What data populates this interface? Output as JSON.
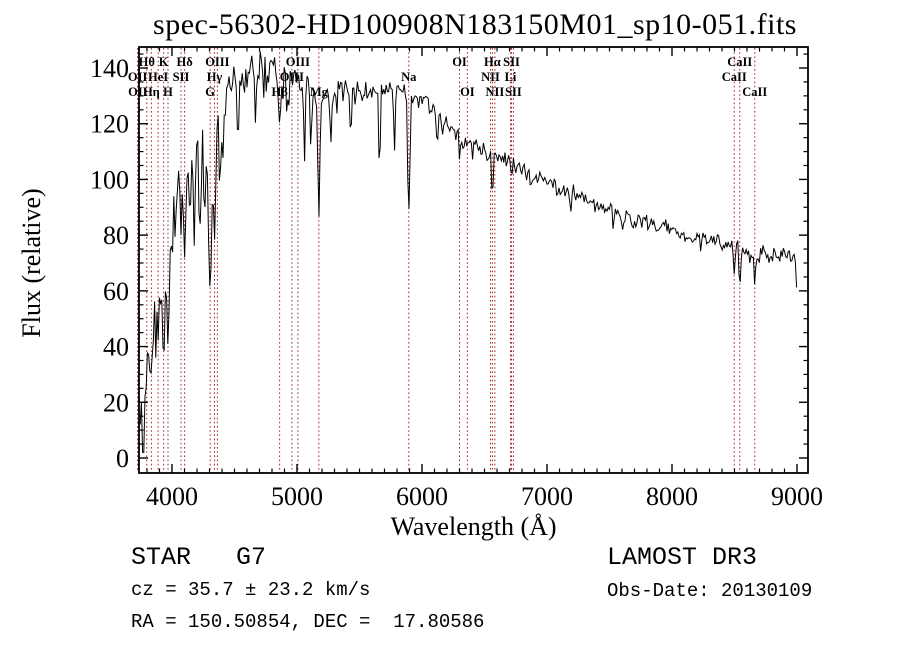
{
  "title": "spec-56302-HD100908N183150M01_sp10-051.fits",
  "annotations": {
    "class_line": "STAR   G7",
    "cz_line": "cz = 35.7 ± 23.2 km/s",
    "radec_line": "RA = 150.50854, DEC =  17.80586",
    "survey_line": "LAMOST DR3",
    "obsdate_line": "Obs-Date: 20130109"
  },
  "colors": {
    "background": "#ffffff",
    "axis": "#000000",
    "spectrum": "#000000",
    "line_marker": "#a02828",
    "text": "#000000"
  },
  "chart_data": {
    "type": "line",
    "title": "spec-56302-HD100908N183150M01_sp10-051.fits",
    "xlabel": "Wavelength (Å)",
    "ylabel": "Flux (relative)",
    "xlim": [
      3736,
      9088
    ],
    "ylim": [
      -5.4,
      147.5
    ],
    "x_ticks": [
      4000,
      5000,
      6000,
      7000,
      8000,
      9000
    ],
    "y_ticks": [
      0,
      20,
      40,
      60,
      80,
      100,
      120,
      140
    ],
    "x_minor_step": 100,
    "y_minor_step": 5,
    "grid": false,
    "legend": "none",
    "line_markers": [
      {
        "label": "OII",
        "wavelength": 3725,
        "row": 2
      },
      {
        "label": "OII",
        "wavelength": 3727,
        "row": 3
      },
      {
        "label": "Hθ",
        "wavelength": 3798,
        "row": 1
      },
      {
        "label": "Hη",
        "wavelength": 3835,
        "row": 3
      },
      {
        "label": "HeI",
        "wavelength": 3889,
        "row": 2
      },
      {
        "label": "K",
        "wavelength": 3933,
        "row": 1
      },
      {
        "label": "H",
        "wavelength": 3968,
        "row": 3
      },
      {
        "label": "SII",
        "wavelength": 4072,
        "row": 2
      },
      {
        "label": "Hδ",
        "wavelength": 4101,
        "row": 1
      },
      {
        "label": "G",
        "wavelength": 4305,
        "row": 3
      },
      {
        "label": "Hγ",
        "wavelength": 4340,
        "row": 2
      },
      {
        "label": "OIII",
        "wavelength": 4363,
        "row": 1
      },
      {
        "label": "Hβ",
        "wavelength": 4861,
        "row": 3
      },
      {
        "label": "OIII",
        "wavelength": 4959,
        "row": 2
      },
      {
        "label": "OIII",
        "wavelength": 5007,
        "row": 1
      },
      {
        "label": "Mg",
        "wavelength": 5175,
        "row": 3
      },
      {
        "label": "Na",
        "wavelength": 5894,
        "row": 2
      },
      {
        "label": "OI",
        "wavelength": 6300,
        "row": 1
      },
      {
        "label": "OI",
        "wavelength": 6363,
        "row": 3
      },
      {
        "label": "NII",
        "wavelength": 6548,
        "row": 2
      },
      {
        "label": "Hα",
        "wavelength": 6563,
        "row": 1
      },
      {
        "label": "NII",
        "wavelength": 6583,
        "row": 3
      },
      {
        "label": "Li",
        "wavelength": 6708,
        "row": 2
      },
      {
        "label": "SII",
        "wavelength": 6716,
        "row": 1
      },
      {
        "label": "SII",
        "wavelength": 6731,
        "row": 3
      },
      {
        "label": "CaII",
        "wavelength": 8498,
        "row": 2
      },
      {
        "label": "CaII",
        "wavelength": 8542,
        "row": 1
      },
      {
        "label": "CaII",
        "wavelength": 8662,
        "row": 3
      }
    ],
    "spectrum": {
      "wavelength_start": 3736,
      "wavelength_end": 9005,
      "step": 9.6,
      "seed": 20130109,
      "continuum_anchors": [
        [
          3736,
          28
        ],
        [
          3750,
          36
        ],
        [
          3770,
          44
        ],
        [
          3790,
          50
        ],
        [
          3810,
          54
        ],
        [
          3830,
          56
        ],
        [
          3850,
          58
        ],
        [
          3870,
          62
        ],
        [
          3900,
          70
        ],
        [
          3940,
          72
        ],
        [
          3960,
          76
        ],
        [
          3980,
          82
        ],
        [
          4000,
          90
        ],
        [
          4030,
          100
        ],
        [
          4060,
          102
        ],
        [
          4090,
          100
        ],
        [
          4120,
          103
        ],
        [
          4150,
          106
        ],
        [
          4180,
          108
        ],
        [
          4210,
          110
        ],
        [
          4240,
          112
        ],
        [
          4270,
          106
        ],
        [
          4300,
          99
        ],
        [
          4330,
          106
        ],
        [
          4360,
          116
        ],
        [
          4400,
          126
        ],
        [
          4450,
          132
        ],
        [
          4500,
          135
        ],
        [
          4550,
          136
        ],
        [
          4600,
          138
        ],
        [
          4650,
          140
        ],
        [
          4700,
          141
        ],
        [
          4760,
          142
        ],
        [
          4820,
          140
        ],
        [
          4861,
          136
        ],
        [
          4900,
          140
        ],
        [
          4960,
          138
        ],
        [
          5020,
          137
        ],
        [
          5080,
          135
        ],
        [
          5140,
          130
        ],
        [
          5200,
          131
        ],
        [
          5260,
          133
        ],
        [
          5320,
          132
        ],
        [
          5400,
          132
        ],
        [
          5500,
          132
        ],
        [
          5600,
          131
        ],
        [
          5700,
          132
        ],
        [
          5800,
          133
        ],
        [
          5860,
          131
        ],
        [
          5930,
          130
        ],
        [
          6000,
          128
        ],
        [
          6080,
          125
        ],
        [
          6160,
          122
        ],
        [
          6240,
          118
        ],
        [
          6320,
          114
        ],
        [
          6400,
          112
        ],
        [
          6480,
          110
        ],
        [
          6560,
          109
        ],
        [
          6640,
          108
        ],
        [
          6720,
          106
        ],
        [
          6800,
          104
        ],
        [
          6900,
          101
        ],
        [
          7000,
          99
        ],
        [
          7100,
          97
        ],
        [
          7200,
          95
        ],
        [
          7300,
          93
        ],
        [
          7400,
          91
        ],
        [
          7500,
          89
        ],
        [
          7600,
          87
        ],
        [
          7700,
          86
        ],
        [
          7800,
          84
        ],
        [
          7900,
          83
        ],
        [
          8000,
          82
        ],
        [
          8100,
          80
        ],
        [
          8200,
          79
        ],
        [
          8300,
          78
        ],
        [
          8400,
          77
        ],
        [
          8460,
          76
        ],
        [
          8520,
          75
        ],
        [
          8580,
          74
        ],
        [
          8640,
          74
        ],
        [
          8700,
          73
        ],
        [
          8800,
          72
        ],
        [
          8900,
          73
        ],
        [
          8960,
          72
        ],
        [
          8990,
          70
        ],
        [
          8998,
          58
        ],
        [
          9005,
          57
        ]
      ],
      "noise_profile": [
        [
          3736,
          13
        ],
        [
          3800,
          12
        ],
        [
          3900,
          9
        ],
        [
          4000,
          7
        ],
        [
          4100,
          6
        ],
        [
          4250,
          5.5
        ],
        [
          4450,
          4.5
        ],
        [
          4700,
          4
        ],
        [
          5000,
          3.5
        ],
        [
          5400,
          2.8
        ],
        [
          5900,
          2.6
        ],
        [
          6300,
          2.4
        ],
        [
          6800,
          2.2
        ],
        [
          7400,
          2.2
        ],
        [
          8000,
          2.3
        ],
        [
          8600,
          2.6
        ],
        [
          9005,
          2.6
        ]
      ],
      "spike_probability": [
        [
          3736,
          0.35
        ],
        [
          3950,
          0.2
        ],
        [
          4200,
          0.12
        ],
        [
          4600,
          0.08
        ],
        [
          5200,
          0.05
        ],
        [
          6000,
          0.04
        ],
        [
          9005,
          0.03
        ]
      ],
      "blue_boost": {
        "until": 3820,
        "factor": 1.9
      },
      "absorption_features": [
        [
          3742,
          10,
          6
        ],
        [
          3756,
          20,
          5
        ],
        [
          3772,
          26,
          5
        ],
        [
          3788,
          18,
          5
        ],
        [
          3798,
          32,
          4
        ],
        [
          3815,
          36,
          5
        ],
        [
          3835,
          28,
          5
        ],
        [
          3850,
          42,
          4
        ],
        [
          3870,
          48,
          4
        ],
        [
          3889,
          42,
          5
        ],
        [
          3910,
          55,
          4
        ],
        [
          3933,
          34,
          6
        ],
        [
          3950,
          58,
          4
        ],
        [
          3968,
          40,
          6
        ],
        [
          4000,
          72,
          4
        ],
        [
          4026,
          78,
          4
        ],
        [
          4072,
          80,
          4
        ],
        [
          4101,
          72,
          5
        ],
        [
          4144,
          86,
          4
        ],
        [
          4178,
          76,
          4
        ],
        [
          4226,
          84,
          5
        ],
        [
          4260,
          86,
          4
        ],
        [
          4305,
          60,
          7
        ],
        [
          4340,
          78,
          5
        ],
        [
          4383,
          95,
          4
        ],
        [
          4405,
          105,
          4
        ],
        [
          4528,
          112,
          4
        ],
        [
          4668,
          120,
          4
        ],
        [
          4861,
          120,
          6
        ],
        [
          4920,
          122,
          4
        ],
        [
          5060,
          106,
          4
        ],
        [
          5110,
          112,
          4
        ],
        [
          5175,
          86,
          5
        ],
        [
          5270,
          112,
          4
        ],
        [
          5430,
          115,
          4
        ],
        [
          5660,
          102,
          4
        ],
        [
          5780,
          110,
          4
        ],
        [
          5894,
          88,
          6
        ],
        [
          6122,
          112,
          4
        ],
        [
          6162,
          115,
          3
        ],
        [
          6300,
          107,
          3
        ],
        [
          6563,
          93,
          4
        ],
        [
          6717,
          100,
          3
        ],
        [
          6870,
          97,
          4
        ],
        [
          7190,
          88,
          4
        ],
        [
          7605,
          82,
          5
        ],
        [
          7680,
          83,
          4
        ],
        [
          8230,
          74,
          3
        ],
        [
          8498,
          66,
          4
        ],
        [
          8542,
          61,
          4
        ],
        [
          8662,
          62,
          4
        ]
      ],
      "flux_clip": [
        2,
        146
      ]
    }
  }
}
